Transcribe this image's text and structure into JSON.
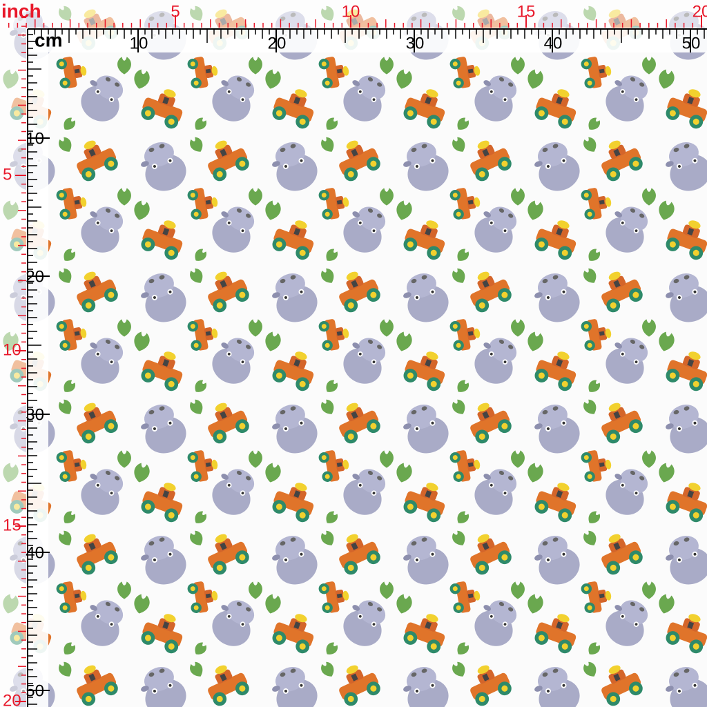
{
  "corner": {
    "inch": "inch",
    "cm": "cm"
  },
  "top": {
    "inch_labels": [
      5,
      10,
      15,
      20
    ],
    "cm_labels": [
      10,
      20,
      30,
      40,
      50
    ]
  },
  "left": {
    "inch_labels": [
      5,
      10,
      15,
      20
    ],
    "cm_labels": [
      10,
      20,
      30,
      40,
      50
    ]
  }
}
